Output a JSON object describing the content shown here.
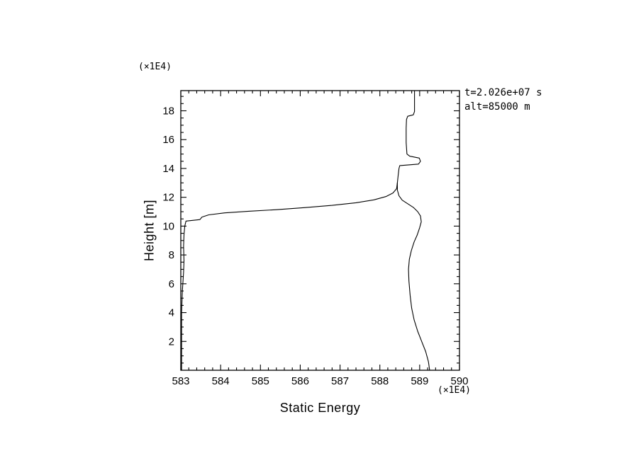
{
  "page": {
    "background": "#ffffff",
    "foreground": "#000000"
  },
  "chart_data": {
    "type": "line",
    "title": "",
    "xlabel": "Static Energy",
    "ylabel": "Height [m]",
    "x_unit_label": "(×1E4)",
    "y_unit_label": "(×1E4)",
    "xlim": [
      583,
      590
    ],
    "ylim": [
      0,
      19.4
    ],
    "x_ticks": [
      583,
      584,
      585,
      586,
      587,
      588,
      589,
      590
    ],
    "y_ticks": [
      2,
      4,
      6,
      8,
      10,
      12,
      14,
      16,
      18
    ],
    "x_minor_step": 0.2,
    "y_minor_step": 0.5,
    "grid": false,
    "legend": "none",
    "line_color": "#000000",
    "annotations": [
      "t=2.026e+07 s",
      "alt=85000 m"
    ],
    "series": [
      {
        "name": "static-energy-profile-lower-branch",
        "points": [
          [
            583.02,
            0.0
          ],
          [
            583.02,
            4.0
          ],
          [
            583.04,
            5.5
          ],
          [
            583.07,
            6.8
          ],
          [
            583.08,
            7.6
          ],
          [
            583.07,
            8.6
          ],
          [
            583.08,
            9.4
          ],
          [
            583.1,
            10.0
          ],
          [
            583.13,
            10.35
          ],
          [
            583.48,
            10.45
          ],
          [
            583.53,
            10.63
          ],
          [
            583.7,
            10.78
          ],
          [
            584.1,
            10.92
          ],
          [
            584.7,
            11.03
          ],
          [
            585.4,
            11.14
          ],
          [
            586.1,
            11.28
          ],
          [
            586.8,
            11.44
          ],
          [
            587.4,
            11.62
          ],
          [
            587.85,
            11.82
          ],
          [
            588.15,
            12.05
          ],
          [
            588.33,
            12.3
          ],
          [
            588.42,
            12.6
          ],
          [
            588.44,
            13.0
          ],
          [
            588.46,
            13.5
          ],
          [
            588.48,
            14.0
          ],
          [
            588.5,
            14.2
          ],
          [
            588.97,
            14.3
          ],
          [
            589.02,
            14.5
          ],
          [
            588.99,
            14.72
          ],
          [
            588.75,
            14.85
          ],
          [
            588.68,
            15.0
          ],
          [
            588.66,
            15.8
          ],
          [
            588.66,
            16.8
          ],
          [
            588.67,
            17.4
          ],
          [
            588.7,
            17.62
          ],
          [
            588.84,
            17.72
          ],
          [
            588.87,
            17.95
          ],
          [
            588.87,
            19.4
          ]
        ]
      },
      {
        "name": "static-energy-profile-right-branch",
        "points": [
          [
            589.25,
            0.0
          ],
          [
            589.22,
            0.6
          ],
          [
            589.15,
            1.3
          ],
          [
            589.05,
            2.0
          ],
          [
            588.95,
            2.7
          ],
          [
            588.86,
            3.5
          ],
          [
            588.8,
            4.3
          ],
          [
            588.76,
            5.2
          ],
          [
            588.73,
            6.2
          ],
          [
            588.72,
            7.0
          ],
          [
            588.74,
            7.7
          ],
          [
            588.79,
            8.3
          ],
          [
            588.86,
            8.9
          ],
          [
            588.94,
            9.4
          ],
          [
            589.0,
            9.9
          ],
          [
            589.04,
            10.3
          ],
          [
            589.02,
            10.7
          ],
          [
            588.95,
            11.0
          ],
          [
            588.84,
            11.3
          ],
          [
            588.7,
            11.55
          ],
          [
            588.56,
            11.8
          ],
          [
            588.48,
            12.1
          ],
          [
            588.44,
            12.5
          ],
          [
            588.44,
            13.0
          ]
        ]
      }
    ]
  }
}
